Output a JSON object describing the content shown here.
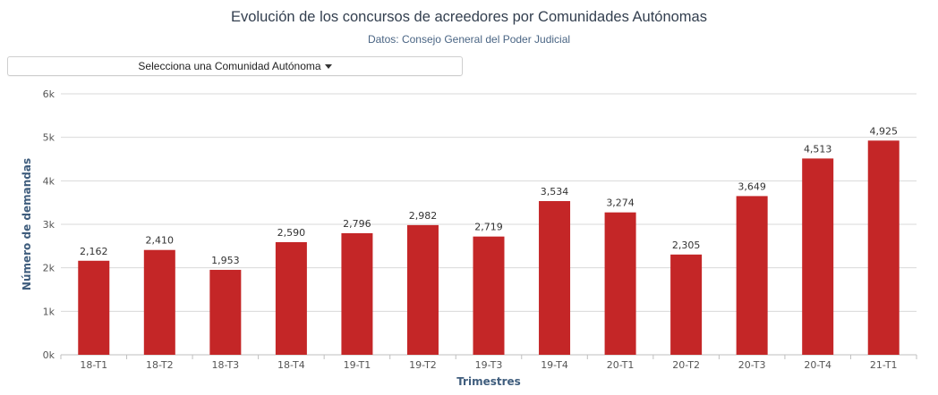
{
  "header": {
    "title": "Evolución de los concursos de acreedores por Comunidades Autónomas",
    "subtitle": "Datos: Consejo General del Poder Judicial"
  },
  "dropdown": {
    "label": "Selecciona una Comunidad Autónoma"
  },
  "colors": {
    "bar": "#c42627",
    "axis_title": "#3f5d7d",
    "grid": "#d9d9d9",
    "tick_text": "#555555",
    "label_text": "#333333"
  },
  "chart_data": {
    "type": "bar",
    "title": "Evolución de los concursos de acreedores por Comunidades Autónomas",
    "subtitle": "Datos: Consejo General del Poder Judicial",
    "xlabel": "Trimestres",
    "ylabel": "Número de demandas",
    "categories": [
      "18-T1",
      "18-T2",
      "18-T3",
      "18-T4",
      "19-T1",
      "19-T2",
      "19-T3",
      "19-T4",
      "20-T1",
      "20-T2",
      "20-T3",
      "20-T4",
      "21-T1"
    ],
    "values": [
      2162,
      2410,
      1953,
      2590,
      2796,
      2982,
      2719,
      3534,
      3274,
      2305,
      3649,
      4513,
      4925
    ],
    "value_labels": [
      "2,162",
      "2,410",
      "1,953",
      "2,590",
      "2,796",
      "2,982",
      "2,719",
      "3,534",
      "3,274",
      "2,305",
      "3,649",
      "4,513",
      "4,925"
    ],
    "ylim": [
      0,
      6000
    ],
    "yticks": [
      0,
      1000,
      2000,
      3000,
      4000,
      5000,
      6000
    ],
    "ytick_labels": [
      "0k",
      "1k",
      "2k",
      "3k",
      "4k",
      "5k",
      "6k"
    ],
    "grid": true,
    "legend": "none"
  }
}
